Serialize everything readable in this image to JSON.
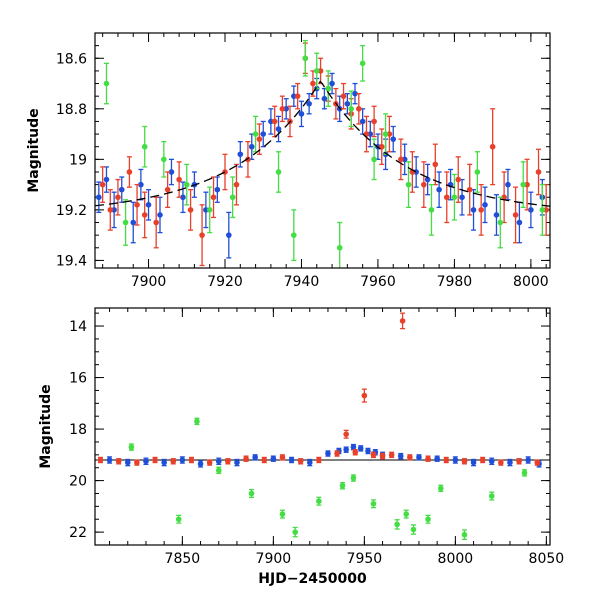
{
  "chart_data": [
    {
      "type": "scatter",
      "panel": "top",
      "xlabel": "",
      "ylabel": "Magnitude",
      "xlim": [
        7886,
        8005
      ],
      "ylim": [
        19.43,
        18.5
      ],
      "y_inverted": true,
      "xticks": [
        7900,
        7920,
        7940,
        7960,
        7980,
        8000
      ],
      "yticks": [
        18.6,
        18.8,
        19,
        19.2,
        19.4
      ],
      "xtick_labels": [
        "7900",
        "7920",
        "7940",
        "7960",
        "7980",
        "8000"
      ],
      "ytick_labels": [
        "18.6",
        "18.8",
        "19",
        "19.2",
        "19.4"
      ],
      "model": {
        "type": "symmetric-peak",
        "t0": 7945,
        "base": 19.22,
        "peak": 18.69,
        "tau": 22,
        "style": "dashed",
        "color": "#000000"
      },
      "series": [
        {
          "color": "#1f4fd8",
          "x": [
            7887,
            7889,
            7891,
            7893,
            7896,
            7898,
            7900,
            7903,
            7906,
            7909,
            7912,
            7915,
            7918,
            7921,
            7924,
            7927,
            7930,
            7932,
            7934,
            7936,
            7938,
            7940,
            7942,
            7944,
            7946,
            7948,
            7950,
            7952,
            7954,
            7956,
            7958,
            7960,
            7962,
            7964,
            7967,
            7970,
            7973,
            7976,
            7979,
            7982,
            7985,
            7988,
            7991,
            7994,
            7997,
            8000,
            8003
          ],
          "y": [
            19.15,
            19.08,
            19.2,
            19.12,
            19.25,
            19.1,
            19.18,
            19.22,
            19.05,
            19.15,
            19.1,
            19.2,
            19.12,
            19.3,
            18.98,
            18.95,
            18.9,
            18.85,
            18.88,
            18.8,
            18.75,
            18.82,
            18.78,
            18.72,
            18.76,
            18.7,
            18.8,
            18.78,
            18.74,
            18.85,
            18.9,
            18.95,
            18.98,
            18.92,
            19.0,
            19.05,
            19.08,
            19.12,
            19.1,
            19.15,
            19.2,
            19.18,
            19.22,
            19.1,
            19.25,
            19.2,
            19.15
          ],
          "err": [
            0.06,
            0.05,
            0.07,
            0.05,
            0.08,
            0.06,
            0.06,
            0.07,
            0.05,
            0.06,
            0.05,
            0.07,
            0.05,
            0.09,
            0.05,
            0.05,
            0.05,
            0.05,
            0.05,
            0.04,
            0.04,
            0.05,
            0.04,
            0.04,
            0.04,
            0.04,
            0.05,
            0.04,
            0.04,
            0.05,
            0.05,
            0.05,
            0.06,
            0.05,
            0.06,
            0.06,
            0.06,
            0.07,
            0.06,
            0.07,
            0.08,
            0.07,
            0.08,
            0.06,
            0.08,
            0.07,
            0.07
          ]
        },
        {
          "color": "#e8402a",
          "x": [
            7888,
            7890,
            7892,
            7895,
            7897,
            7899,
            7902,
            7905,
            7908,
            7911,
            7914,
            7917,
            7920,
            7923,
            7926,
            7929,
            7933,
            7935,
            7937,
            7939,
            7941,
            7943,
            7945,
            7947,
            7949,
            7951,
            7953,
            7955,
            7957,
            7959,
            7961,
            7963,
            7966,
            7969,
            7972,
            7975,
            7978,
            7981,
            7984,
            7987,
            7990,
            7993,
            7996,
            7999,
            8002,
            8004
          ],
          "y": [
            19.1,
            19.2,
            19.15,
            19.05,
            19.18,
            19.22,
            19.25,
            19.12,
            19.08,
            19.2,
            19.3,
            19.15,
            19.05,
            19.1,
            19.0,
            18.92,
            18.85,
            18.8,
            18.85,
            18.75,
            18.6,
            18.7,
            18.65,
            18.72,
            18.78,
            18.75,
            18.82,
            18.8,
            18.9,
            18.85,
            18.95,
            18.9,
            19.0,
            19.05,
            19.1,
            19.02,
            19.15,
            19.08,
            19.12,
            19.2,
            18.95,
            19.15,
            19.22,
            19.1,
            19.05,
            19.2
          ],
          "err": [
            0.07,
            0.08,
            0.07,
            0.06,
            0.08,
            0.09,
            0.1,
            0.07,
            0.07,
            0.08,
            0.12,
            0.08,
            0.07,
            0.08,
            0.07,
            0.06,
            0.06,
            0.05,
            0.06,
            0.05,
            0.06,
            0.05,
            0.05,
            0.05,
            0.06,
            0.05,
            0.06,
            0.06,
            0.07,
            0.06,
            0.07,
            0.07,
            0.08,
            0.08,
            0.09,
            0.08,
            0.1,
            0.09,
            0.1,
            0.1,
            0.15,
            0.1,
            0.11,
            0.1,
            0.09,
            0.1
          ]
        },
        {
          "color": "#44dd44",
          "x": [
            7889,
            7894,
            7899,
            7904,
            7910,
            7916,
            7922,
            7928,
            7934,
            7938,
            7941,
            7944,
            7947,
            7950,
            7953,
            7956,
            7959,
            7962,
            7968,
            7974,
            7980,
            7986,
            7992,
            7998,
            8003
          ],
          "y": [
            18.7,
            19.25,
            18.95,
            19.0,
            19.1,
            19.2,
            19.15,
            18.9,
            19.05,
            19.3,
            18.6,
            18.65,
            18.72,
            19.35,
            18.8,
            18.62,
            19.0,
            18.9,
            19.1,
            19.2,
            19.15,
            19.05,
            19.25,
            19.1,
            19.2
          ],
          "err": [
            0.08,
            0.09,
            0.08,
            0.07,
            0.08,
            0.09,
            0.08,
            0.07,
            0.08,
            0.1,
            0.07,
            0.07,
            0.07,
            0.1,
            0.07,
            0.07,
            0.08,
            0.08,
            0.09,
            0.1,
            0.09,
            0.08,
            0.1,
            0.09,
            0.1
          ]
        }
      ]
    },
    {
      "type": "scatter",
      "panel": "bottom",
      "xlabel": "HJD−2450000",
      "ylabel": "Magnitude",
      "xlim": [
        7802,
        8052
      ],
      "ylim": [
        22.5,
        13.3
      ],
      "y_inverted": true,
      "xticks": [
        7850,
        7900,
        7950,
        8000,
        8050
      ],
      "yticks": [
        14,
        16,
        18,
        20,
        22
      ],
      "xtick_labels": [
        "7850",
        "7900",
        "7950",
        "8000",
        "8050"
      ],
      "ytick_labels": [
        "14",
        "16",
        "18",
        "20",
        "22"
      ],
      "reference_lines": [
        19.2
      ],
      "series": [
        {
          "color": "#1f4fd8",
          "x": [
            7810,
            7820,
            7830,
            7840,
            7850,
            7860,
            7870,
            7880,
            7890,
            7900,
            7910,
            7920,
            7930,
            7936,
            7940,
            7944,
            7948,
            7952,
            7956,
            7960,
            7970,
            7980,
            7990,
            8000,
            8010,
            8020,
            8030,
            8040,
            8046
          ],
          "y": [
            19.2,
            19.3,
            19.25,
            19.3,
            19.2,
            19.35,
            19.25,
            19.3,
            19.1,
            19.15,
            19.2,
            19.3,
            18.95,
            18.85,
            18.8,
            18.7,
            18.75,
            18.85,
            18.9,
            19.0,
            19.05,
            19.1,
            19.15,
            19.2,
            19.3,
            19.25,
            19.3,
            19.2,
            19.35
          ],
          "err": [
            0.12,
            0.12,
            0.12,
            0.12,
            0.12,
            0.12,
            0.12,
            0.12,
            0.1,
            0.1,
            0.1,
            0.12,
            0.1,
            0.1,
            0.1,
            0.1,
            0.1,
            0.1,
            0.1,
            0.1,
            0.1,
            0.1,
            0.1,
            0.12,
            0.12,
            0.12,
            0.12,
            0.12,
            0.12
          ]
        },
        {
          "color": "#e8402a",
          "x": [
            7805,
            7815,
            7825,
            7835,
            7845,
            7855,
            7865,
            7875,
            7885,
            7895,
            7905,
            7915,
            7925,
            7935,
            7940,
            7945,
            7950,
            7955,
            7960,
            7965,
            7971,
            7975,
            7985,
            7995,
            8005,
            8015,
            8025,
            8035,
            8045
          ],
          "y": [
            19.2,
            19.25,
            19.3,
            19.2,
            19.25,
            19.2,
            19.3,
            19.25,
            19.15,
            19.2,
            19.1,
            19.25,
            19.2,
            18.95,
            18.2,
            18.9,
            16.7,
            19.0,
            19.05,
            19.0,
            13.8,
            19.1,
            19.15,
            19.2,
            19.25,
            19.2,
            19.3,
            19.25,
            19.3
          ],
          "err": [
            0.1,
            0.1,
            0.1,
            0.1,
            0.1,
            0.1,
            0.1,
            0.1,
            0.1,
            0.1,
            0.1,
            0.1,
            0.1,
            0.1,
            0.15,
            0.1,
            0.25,
            0.1,
            0.1,
            0.1,
            0.3,
            0.1,
            0.1,
            0.1,
            0.1,
            0.1,
            0.1,
            0.1,
            0.1
          ]
        },
        {
          "color": "#44dd44",
          "x": [
            7822,
            7848,
            7858,
            7870,
            7888,
            7905,
            7912,
            7925,
            7938,
            7944,
            7955,
            7968,
            7973,
            7977,
            7985,
            7992,
            8005,
            8020,
            8038
          ],
          "y": [
            18.7,
            21.5,
            17.7,
            19.6,
            20.5,
            21.3,
            22.0,
            20.8,
            20.2,
            19.9,
            20.9,
            21.7,
            21.3,
            21.9,
            21.5,
            20.3,
            22.1,
            20.6,
            19.7
          ],
          "err": [
            0.12,
            0.15,
            0.12,
            0.12,
            0.15,
            0.15,
            0.18,
            0.15,
            0.12,
            0.12,
            0.15,
            0.18,
            0.15,
            0.18,
            0.15,
            0.12,
            0.18,
            0.15,
            0.12
          ]
        }
      ]
    }
  ]
}
